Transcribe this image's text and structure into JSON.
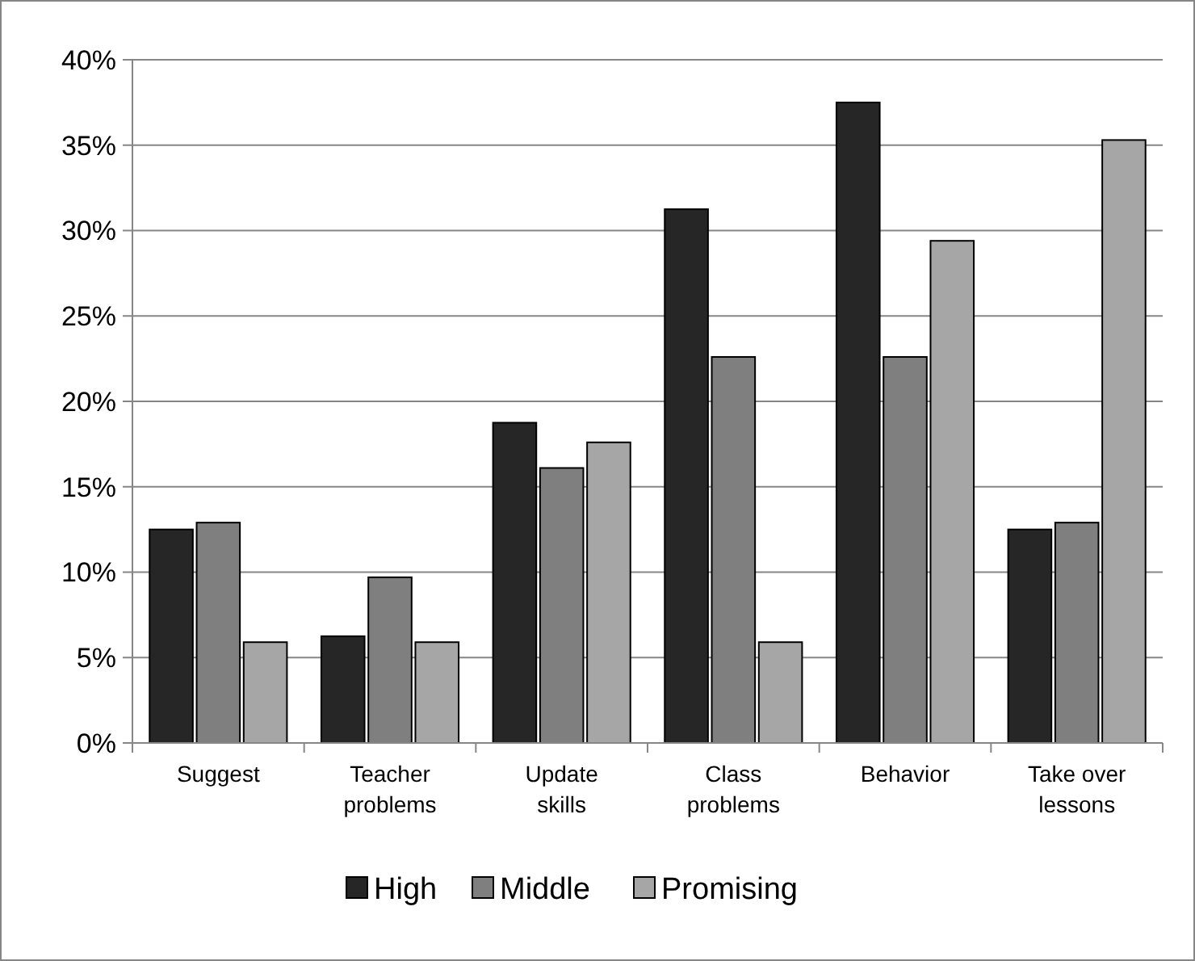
{
  "chart_data": {
    "type": "bar",
    "categories": [
      "Suggest",
      "Teacher problems",
      "Update skills",
      "Class problems",
      "Behavior",
      "Take over lessons"
    ],
    "series": [
      {
        "name": "High",
        "color": "#262626",
        "values": [
          12.5,
          6.25,
          18.75,
          31.25,
          37.5,
          12.5
        ]
      },
      {
        "name": "Middle",
        "color": "#7f7f7f",
        "values": [
          12.9,
          9.7,
          16.1,
          22.6,
          22.6,
          12.9
        ]
      },
      {
        "name": "Promising",
        "color": "#a6a6a6",
        "values": [
          5.9,
          5.9,
          17.6,
          5.9,
          29.4,
          35.3
        ]
      }
    ],
    "ylim": [
      0,
      40
    ],
    "yticks": [
      {
        "value": 0,
        "label": "0%"
      },
      {
        "value": 5,
        "label": "5%"
      },
      {
        "value": 10,
        "label": "10%"
      },
      {
        "value": 15,
        "label": "15%"
      },
      {
        "value": 20,
        "label": "20%"
      },
      {
        "value": 25,
        "label": "25%"
      },
      {
        "value": 30,
        "label": "30%"
      },
      {
        "value": 35,
        "label": "35%"
      },
      {
        "value": 40,
        "label": "40%"
      }
    ],
    "grid": "y",
    "legend": "bottom"
  }
}
